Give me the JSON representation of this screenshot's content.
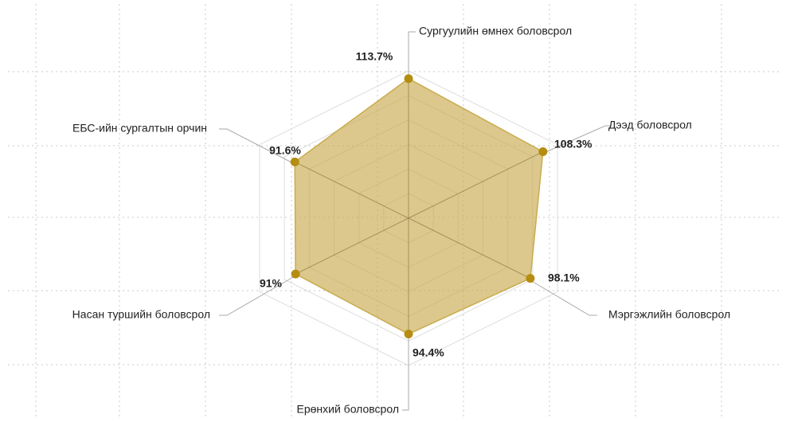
{
  "chart_data": {
    "type": "radar",
    "categories": [
      "Сургуулийн өмнөх боловсрол",
      "Дээд боловсрол",
      "Мэргэжлийн боловсрол",
      "Ерөнхий боловсрол",
      "Насан туршийн боловсрол",
      "ЕБС-ийн сургалтын орчин"
    ],
    "values": [
      113.7,
      108.3,
      98.1,
      94.4,
      91,
      91.6
    ],
    "value_labels": [
      "113.7%",
      "108.3%",
      "98.1%",
      "94.4%",
      "91%",
      "91.6%"
    ],
    "color": "#c9ab4e",
    "rlim": [
      0,
      120
    ],
    "rticks": [
      20,
      40,
      60,
      80,
      100,
      120
    ]
  }
}
